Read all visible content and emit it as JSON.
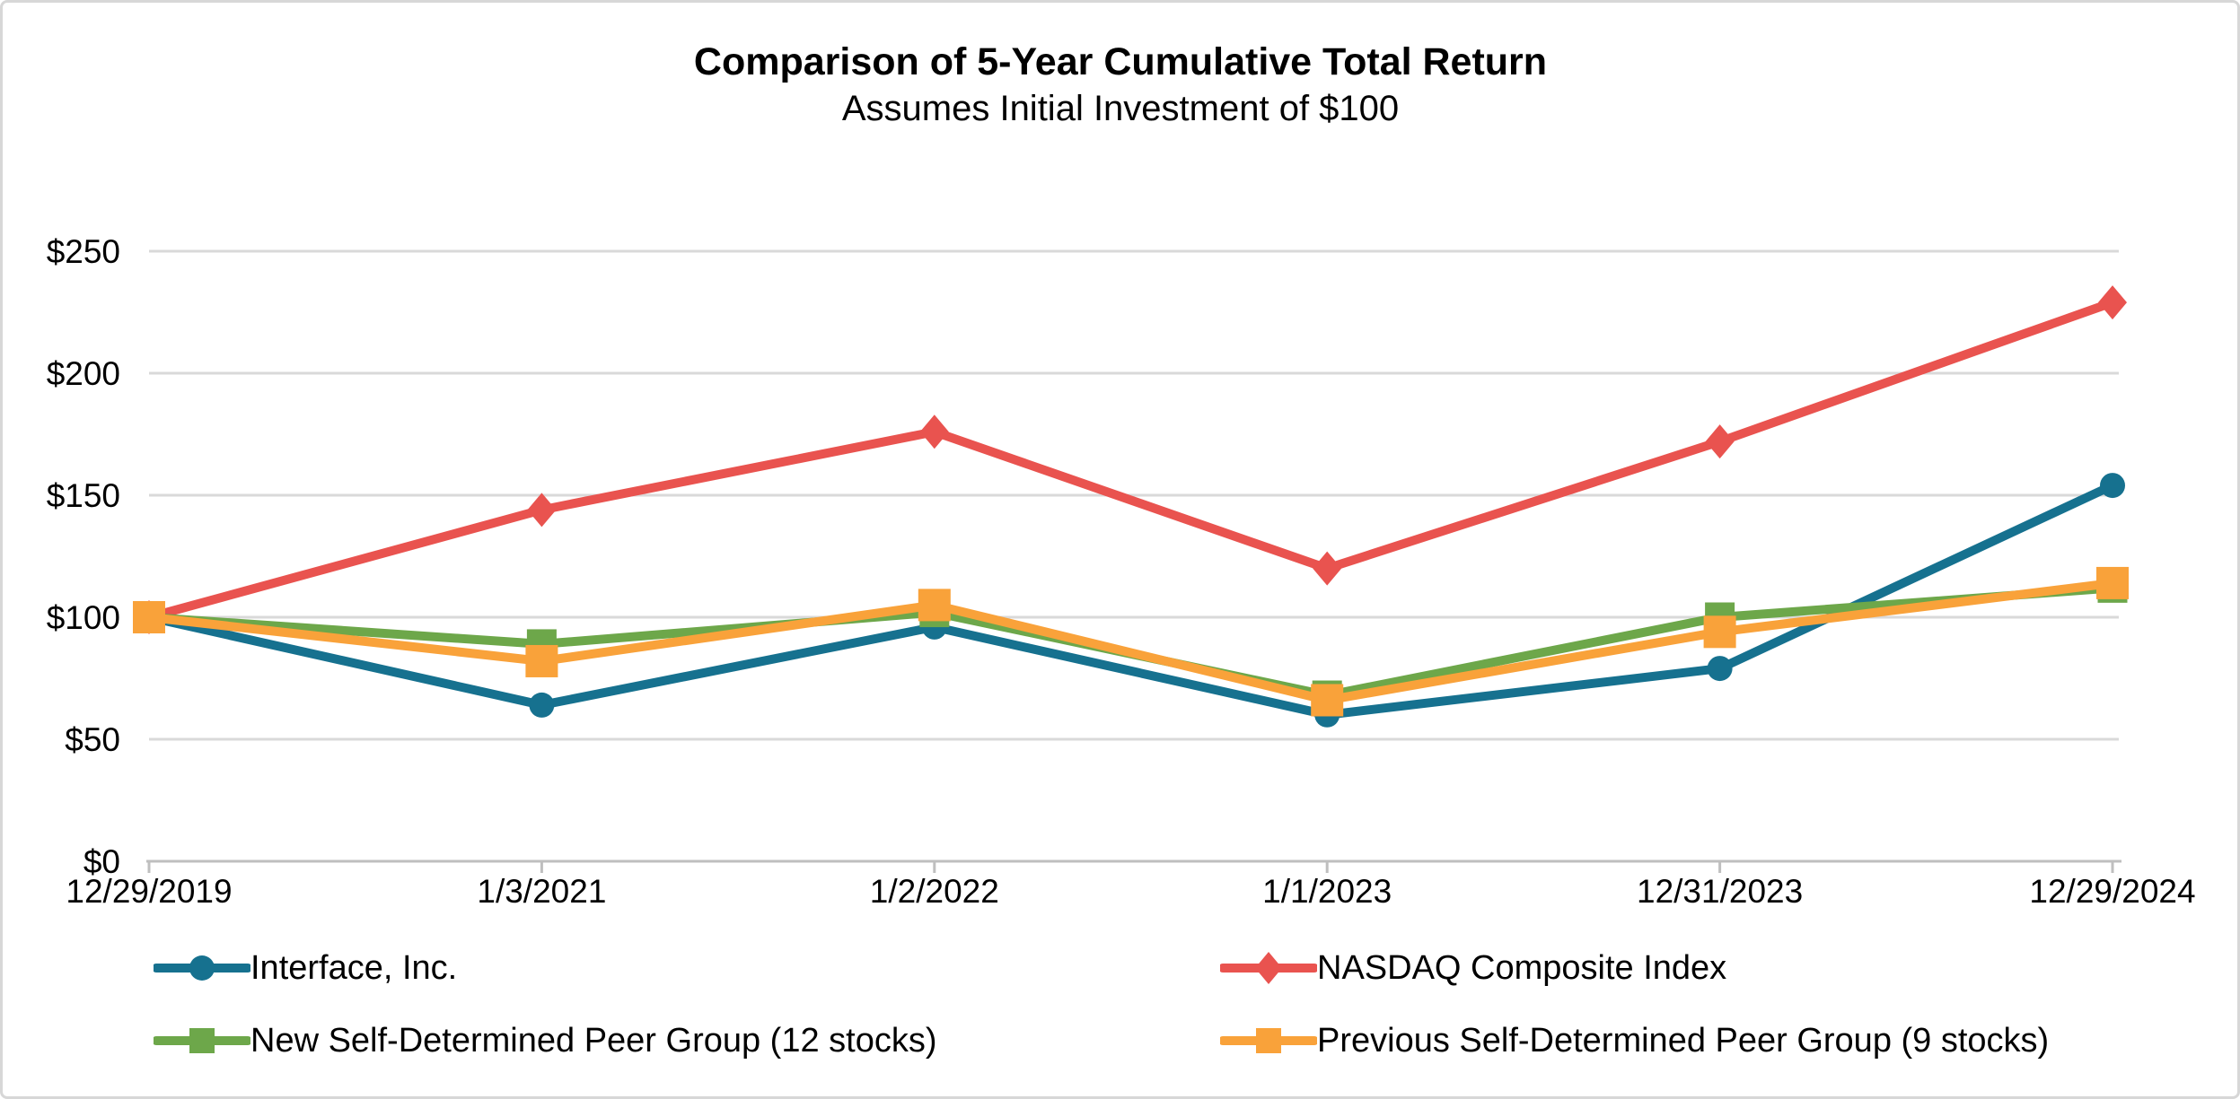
{
  "chart_data": {
    "type": "line",
    "title": "Comparison of 5-Year Cumulative Total Return",
    "subtitle": "Assumes Initial Investment of $100",
    "categories": [
      "12/29/2019",
      "1/3/2021",
      "1/2/2022",
      "1/1/2023",
      "12/31/2023",
      "12/29/2024"
    ],
    "series": [
      {
        "name": "Interface, Inc.",
        "marker": "circle",
        "color": "#16718F",
        "values": [
          100,
          64,
          96,
          60,
          79,
          154
        ]
      },
      {
        "name": "NASDAQ Composite Index",
        "marker": "diamond",
        "color": "#E9534F",
        "values": [
          100,
          144,
          176,
          120,
          172,
          229
        ]
      },
      {
        "name": "New Self-Determined Peer Group (12 stocks)",
        "marker": "square",
        "color": "#6DA74A",
        "values": [
          100,
          89,
          102,
          68,
          100,
          112
        ]
      },
      {
        "name": "Previous Self-Determined Peer Group (9 stocks)",
        "marker": "square",
        "color": "#F9A23A",
        "values": [
          100,
          82,
          105,
          66,
          94,
          114
        ]
      }
    ],
    "ylim": [
      0,
      250
    ],
    "ytick_step": 50,
    "ytick_labels": [
      "$0",
      "$50",
      "$100",
      "$150",
      "$200",
      "$250"
    ],
    "grid": true,
    "legend_position": "bottom-two-columns"
  },
  "colors": {
    "gridline": "#D9D9D9",
    "axis_line": "#BFBFBF",
    "text": "#000000",
    "background": "#FFFFFF",
    "figure_border": "#D7D7D7"
  }
}
